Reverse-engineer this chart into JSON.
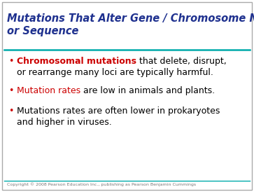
{
  "title_line1": "Mutations That Alter Gene / Chromosome Number",
  "title_line2": "or Sequence",
  "title_color": "#1F318F",
  "title_fontsize": 10.5,
  "divider_color": "#00AAAA",
  "background_color": "#FFFFFF",
  "border_color": "#AAAAAA",
  "bullet_color": "#CC0000",
  "bullet_char": "•",
  "footer_text": "Copyright © 2008 Pearson Education Inc., publishing as Pearson Benjamin Cummings",
  "footer_color": "#777777",
  "footer_fontsize": 4.5,
  "bullet_fontsize": 9.0,
  "body_fontfamily": "DejaVu Sans"
}
